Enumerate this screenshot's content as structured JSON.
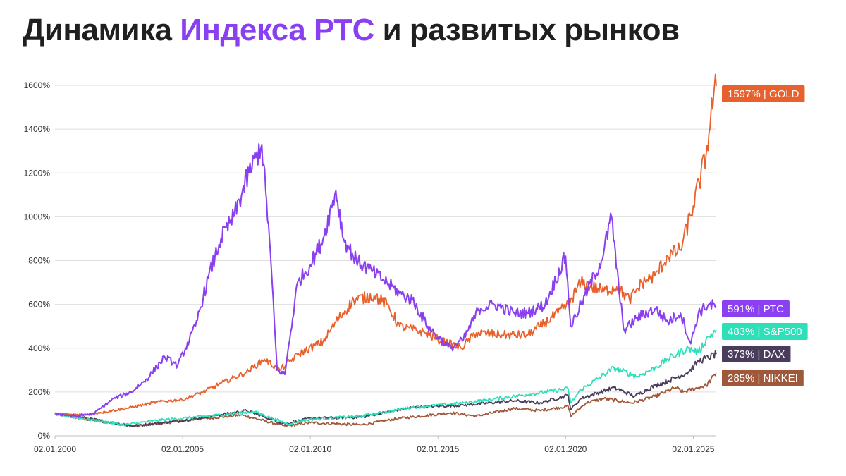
{
  "header": {
    "title_part1": "Динамика ",
    "title_highlight": "Индекса РТС",
    "title_part2": " и развитых рынков",
    "highlight_color": "#8a3ff0"
  },
  "chart_data": {
    "type": "line",
    "title": "Динамика Индекса РТС и развитых рынков",
    "xlabel": "",
    "ylabel": "",
    "x_ticks": [
      "02.01.2000",
      "02.01.2005",
      "02.01.2010",
      "02.01.2015",
      "02.01.2020",
      "02.01.2025"
    ],
    "y_ticks": [
      "0%",
      "200%",
      "400%",
      "600%",
      "800%",
      "1000%",
      "1200%",
      "1400%",
      "1600%"
    ],
    "x_range": [
      2000.0,
      2025.9
    ],
    "y_range": [
      0,
      1600
    ],
    "grid": "horizontal",
    "legend": "right",
    "series": [
      {
        "name": "GOLD",
        "label": "1597% | GOLD",
        "color": "#e8612c",
        "x": [
          2000.0,
          2001.0,
          2002.0,
          2003.0,
          2004.0,
          2005.0,
          2005.8,
          2006.5,
          2007.5,
          2008.2,
          2008.8,
          2009.5,
          2010.5,
          2011.0,
          2011.7,
          2012.5,
          2013.0,
          2013.5,
          2014.5,
          2015.0,
          2015.9,
          2016.5,
          2017.5,
          2018.5,
          2019.0,
          2019.7,
          2020.1,
          2020.6,
          2021.5,
          2022.0,
          2022.5,
          2023.0,
          2023.5,
          2024.0,
          2024.5,
          2025.0,
          2025.5,
          2025.8,
          2025.9
        ],
        "y": [
          100,
          95,
          110,
          130,
          155,
          165,
          200,
          240,
          290,
          350,
          300,
          370,
          430,
          520,
          620,
          640,
          600,
          500,
          470,
          440,
          400,
          470,
          460,
          460,
          500,
          560,
          600,
          700,
          660,
          680,
          620,
          700,
          730,
          820,
          850,
          1050,
          1280,
          1560,
          1597
        ]
      },
      {
        "name": "РТС",
        "label": "591% | РТС",
        "color": "#8a3ff0",
        "x": [
          2000.0,
          2000.8,
          2001.5,
          2002.3,
          2003.0,
          2003.6,
          2004.3,
          2004.8,
          2005.5,
          2006.0,
          2006.5,
          2007.0,
          2007.6,
          2008.1,
          2008.4,
          2008.7,
          2009.0,
          2009.5,
          2010.0,
          2010.5,
          2011.0,
          2011.3,
          2011.8,
          2012.3,
          2013.0,
          2013.5,
          2014.0,
          2014.6,
          2015.0,
          2015.5,
          2016.0,
          2016.6,
          2017.2,
          2018.0,
          2018.5,
          2019.2,
          2020.0,
          2020.2,
          2020.6,
          2021.4,
          2021.8,
          2022.1,
          2022.3,
          2022.8,
          2023.5,
          2024.0,
          2024.5,
          2024.9,
          2025.2,
          2025.6,
          2025.9
        ],
        "y": [
          100,
          90,
          100,
          170,
          200,
          260,
          360,
          320,
          500,
          720,
          900,
          1000,
          1200,
          1330,
          900,
          300,
          280,
          700,
          780,
          900,
          1120,
          900,
          800,
          760,
          700,
          650,
          620,
          500,
          450,
          400,
          440,
          580,
          600,
          560,
          560,
          600,
          820,
          500,
          600,
          800,
          1000,
          650,
          480,
          540,
          580,
          520,
          560,
          420,
          560,
          600,
          591
        ]
      },
      {
        "name": "S&P500",
        "label": "483% | S&P500",
        "color": "#2ee0b8",
        "x": [
          2000.0,
          2001.0,
          2002.7,
          2004.0,
          2006.0,
          2007.8,
          2009.1,
          2010.0,
          2012.0,
          2014.0,
          2016.0,
          2018.0,
          2020.1,
          2020.2,
          2020.6,
          2021.9,
          2022.8,
          2023.5,
          2024.0,
          2024.8,
          2025.2,
          2025.5,
          2025.9
        ],
        "y": [
          100,
          80,
          50,
          70,
          90,
          110,
          55,
          75,
          90,
          130,
          150,
          180,
          215,
          150,
          210,
          310,
          270,
          310,
          350,
          400,
          380,
          440,
          483
        ]
      },
      {
        "name": "DAX",
        "label": "373% | DAX",
        "color": "#4a3d5c",
        "x": [
          2000.0,
          2001.0,
          2003.0,
          2005.0,
          2007.5,
          2009.0,
          2010.0,
          2012.0,
          2014.0,
          2016.0,
          2018.0,
          2019.0,
          2020.1,
          2020.2,
          2020.6,
          2021.9,
          2022.7,
          2023.5,
          2024.0,
          2024.8,
          2025.2,
          2025.9
        ],
        "y": [
          100,
          85,
          45,
          70,
          115,
          55,
          80,
          85,
          130,
          140,
          160,
          150,
          185,
          120,
          170,
          220,
          180,
          230,
          250,
          290,
          340,
          373
        ]
      },
      {
        "name": "NIKKEI",
        "label": "285% | NIKKEI",
        "color": "#a0583a",
        "x": [
          2000.0,
          2001.5,
          2003.2,
          2005.5,
          2007.3,
          2009.0,
          2010.0,
          2012.0,
          2013.5,
          2015.5,
          2016.5,
          2018.0,
          2019.0,
          2020.1,
          2020.2,
          2020.8,
          2021.5,
          2022.6,
          2023.5,
          2024.3,
          2024.6,
          2025.2,
          2025.5,
          2025.9
        ],
        "y": [
          100,
          70,
          45,
          75,
          95,
          45,
          60,
          50,
          80,
          105,
          90,
          125,
          115,
          135,
          90,
          150,
          170,
          150,
          180,
          220,
          200,
          220,
          230,
          285
        ]
      }
    ]
  }
}
